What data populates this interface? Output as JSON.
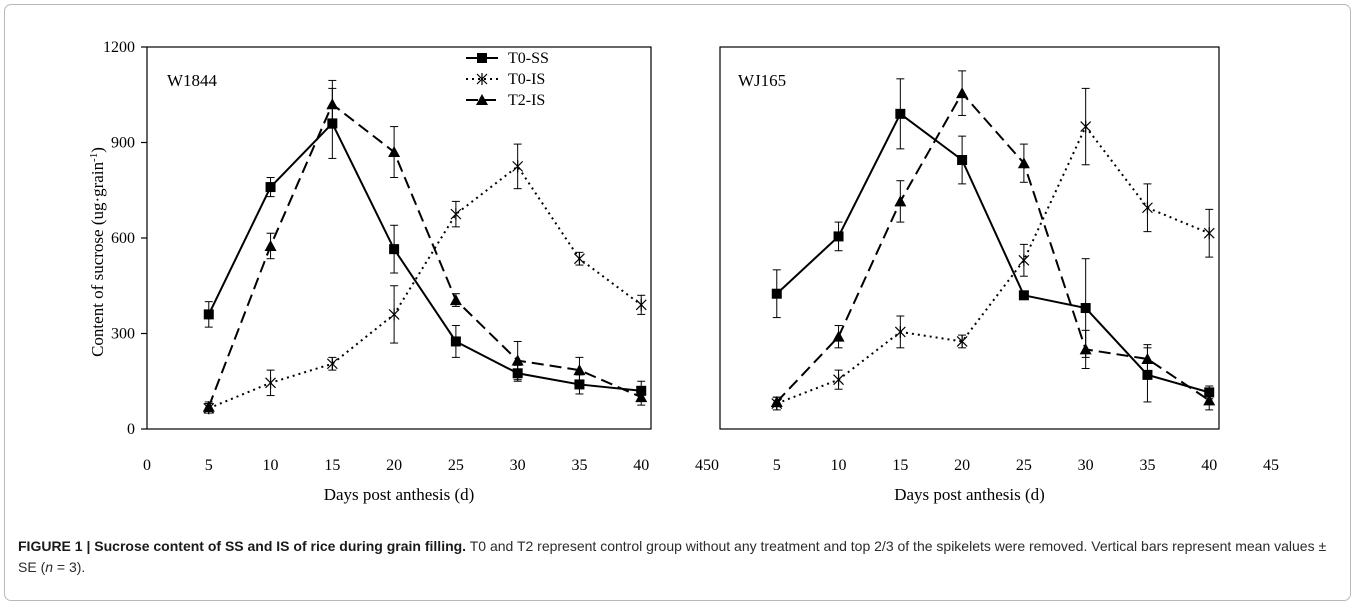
{
  "chart_data": [
    {
      "type": "line",
      "panel_label": "W1844",
      "xlabel": "Days post anthesis (d)",
      "ylabel": "Content of sucrose (ug·grain",
      "ylabel_sup": "-1",
      "ylabel_close": ")",
      "xlim": [
        0,
        45
      ],
      "ylim": [
        0,
        1200
      ],
      "x_ticks": [
        0,
        5,
        10,
        15,
        20,
        25,
        30,
        35,
        40,
        45
      ],
      "y_ticks": [
        0,
        300,
        600,
        900,
        1200
      ],
      "grid": false,
      "legend_position": "top-right",
      "x": [
        5,
        10,
        15,
        20,
        25,
        30,
        35,
        40
      ],
      "series": [
        {
          "name": "T0-SS",
          "marker": "square",
          "line": "solid",
          "values": [
            360,
            760,
            960,
            565,
            275,
            175,
            140,
            120
          ],
          "errors": [
            40,
            30,
            110,
            75,
            50,
            25,
            30,
            30
          ]
        },
        {
          "name": "T0-IS",
          "marker": "asterisk",
          "line": "dotted",
          "values": [
            65,
            145,
            205,
            360,
            675,
            825,
            535,
            390
          ],
          "errors": [
            15,
            40,
            20,
            90,
            40,
            70,
            20,
            30
          ]
        },
        {
          "name": "T2-IS",
          "marker": "triangle",
          "line": "dashed",
          "values": [
            70,
            575,
            1020,
            870,
            405,
            215,
            185,
            100
          ],
          "errors": [
            15,
            40,
            75,
            80,
            20,
            60,
            40,
            25
          ]
        }
      ]
    },
    {
      "type": "line",
      "panel_label": "WJ165",
      "xlabel": "Days post anthesis (d)",
      "xlim": [
        0,
        45
      ],
      "ylim": [
        0,
        1200
      ],
      "x_ticks": [
        0,
        5,
        10,
        15,
        20,
        25,
        30,
        35,
        40,
        45
      ],
      "grid": false,
      "x": [
        5,
        10,
        15,
        20,
        25,
        30,
        35,
        40
      ],
      "series": [
        {
          "name": "T0-SS",
          "marker": "square",
          "line": "solid",
          "values": [
            425,
            605,
            990,
            845,
            420,
            380,
            170,
            115
          ],
          "errors": [
            75,
            45,
            110,
            75,
            0,
            155,
            85,
            20
          ]
        },
        {
          "name": "T0-IS",
          "marker": "asterisk",
          "line": "dotted",
          "values": [
            80,
            155,
            305,
            275,
            530,
            950,
            695,
            615
          ],
          "errors": [
            20,
            30,
            50,
            20,
            50,
            120,
            75,
            75
          ]
        },
        {
          "name": "T2-IS",
          "marker": "triangle",
          "line": "dashed",
          "values": [
            85,
            290,
            715,
            1055,
            835,
            250,
            220,
            90
          ],
          "errors": [
            15,
            35,
            65,
            70,
            60,
            60,
            45,
            30
          ]
        }
      ]
    }
  ],
  "caption": {
    "title": "FIGURE 1 | Sucrose content of SS and IS of rice during grain filling.",
    "text": " T0 and T2 represent control group without any treatment and top 2/3 of the spikelets were removed. Vertical bars represent mean values ± SE (",
    "n_label": "n",
    "text_end": " = 3)."
  }
}
